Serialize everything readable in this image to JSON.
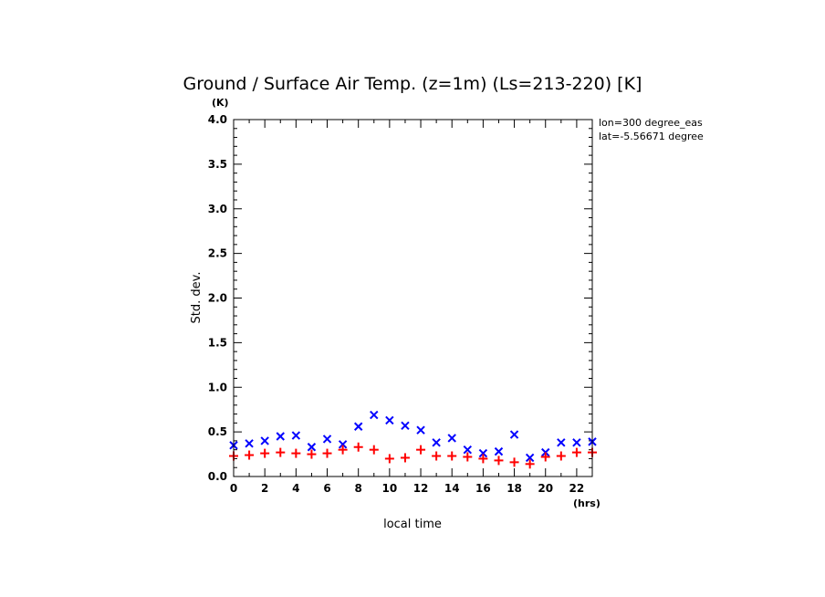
{
  "chart_data": {
    "type": "scatter",
    "title": "Ground / Surface Air Temp. (z=1m) (Ls=213-220) [K]",
    "xlabel": "local time",
    "ylabel": "Std. dev.",
    "x_unit": "(hrs)",
    "y_unit": "(K)",
    "xlim": [
      0,
      23
    ],
    "ylim": [
      0,
      4
    ],
    "x_ticks": [
      0,
      2,
      4,
      6,
      8,
      10,
      12,
      14,
      16,
      18,
      20,
      22
    ],
    "x_tick_labels": [
      "0",
      "2",
      "4",
      "6",
      "8",
      "10",
      "12",
      "14",
      "16",
      "18",
      "20",
      "22"
    ],
    "y_ticks": [
      0,
      0.5,
      1,
      1.5,
      2,
      2.5,
      3,
      3.5,
      4
    ],
    "y_tick_labels": [
      "0.0",
      "0.5",
      "1.0",
      "1.5",
      "2.0",
      "2.5",
      "3.0",
      "3.5",
      "4.0"
    ],
    "annotations": [
      "lon=300 degree_eas",
      "lat=-5.56671 degree"
    ],
    "series": [
      {
        "marker": "x",
        "color": "#0000ff",
        "x": [
          0,
          1,
          2,
          3,
          4,
          5,
          6,
          7,
          8,
          9,
          10,
          11,
          12,
          13,
          14,
          15,
          16,
          17,
          18,
          19,
          20,
          21,
          22,
          23
        ],
        "y": [
          0.35,
          0.37,
          0.4,
          0.45,
          0.46,
          0.33,
          0.42,
          0.36,
          0.56,
          0.69,
          0.63,
          0.57,
          0.52,
          0.38,
          0.43,
          0.3,
          0.26,
          0.28,
          0.47,
          0.21,
          0.27,
          0.38,
          0.38,
          0.39
        ]
      },
      {
        "marker": "+",
        "color": "#ff0000",
        "x": [
          0,
          1,
          2,
          3,
          4,
          5,
          6,
          7,
          8,
          9,
          10,
          11,
          12,
          13,
          14,
          15,
          16,
          17,
          18,
          19,
          20,
          21,
          22,
          23
        ],
        "y": [
          0.23,
          0.24,
          0.26,
          0.27,
          0.26,
          0.25,
          0.26,
          0.3,
          0.33,
          0.3,
          0.2,
          0.21,
          0.3,
          0.23,
          0.23,
          0.22,
          0.2,
          0.18,
          0.16,
          0.14,
          0.22,
          0.23,
          0.27,
          0.27
        ]
      }
    ]
  }
}
